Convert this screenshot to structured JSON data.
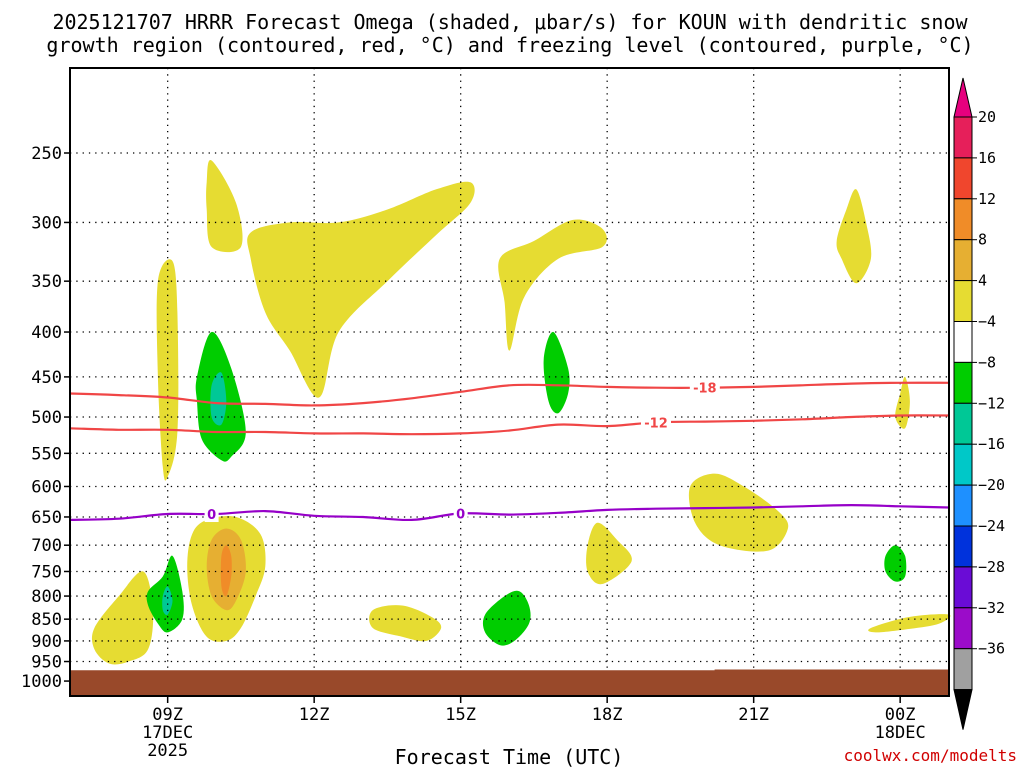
{
  "chart_data": {
    "type": "contour",
    "title_line1": "2025121707 HRRR Forecast Omega (shaded, μbar/s) for KOUN with dendritic snow",
    "title_line2": "growth region (contoured, red, °C) and freezing level (contoured, purple, °C)",
    "xlabel": "Forecast Time (UTC)",
    "credit": "coolwx.com/modelts",
    "x_range_hours": [
      7,
      25
    ],
    "x_ticks": [
      {
        "hour": 9,
        "label": "09Z",
        "sub1": "17DEC",
        "sub2": "2025"
      },
      {
        "hour": 12,
        "label": "12Z",
        "sub1": "",
        "sub2": ""
      },
      {
        "hour": 15,
        "label": "15Z",
        "sub1": "",
        "sub2": ""
      },
      {
        "hour": 18,
        "label": "18Z",
        "sub1": "",
        "sub2": ""
      },
      {
        "hour": 21,
        "label": "21Z",
        "sub1": "",
        "sub2": ""
      },
      {
        "hour": 24,
        "label": "00Z",
        "sub1": "18DEC",
        "sub2": ""
      }
    ],
    "y_ticks": [
      250,
      300,
      350,
      400,
      450,
      500,
      550,
      600,
      650,
      700,
      750,
      800,
      850,
      900,
      950,
      1000
    ],
    "y_range_hpa": [
      200,
      1040
    ],
    "surface_pressure_hpa": [
      [
        7,
        972
      ],
      [
        20.2,
        972
      ],
      [
        20.2,
        970
      ],
      [
        25,
        970
      ]
    ],
    "colorbar": {
      "labels": [
        "20",
        "16",
        "12",
        "8",
        "4",
        "−4",
        "−8",
        "−12",
        "−16",
        "−20",
        "−24",
        "−28",
        "−32",
        "−36"
      ],
      "colors": [
        "#e61f5a",
        "#f0462d",
        "#f08c28",
        "#e6af32",
        "#e6dc32",
        "#ffffff",
        "#00cd00",
        "#00c896",
        "#00c8c8",
        "#1e90ff",
        "#0032dc",
        "#6a0cd6",
        "#9b0cc9",
        "#a0a0a0",
        "#000000"
      ],
      "top_arrow_color": "#e6007e",
      "bottom_arrow_color": "#000000"
    },
    "contours": [
      {
        "name": "-18",
        "color": "#f04646",
        "points": [
          [
            7,
            470
          ],
          [
            8,
            472
          ],
          [
            9,
            475
          ],
          [
            10,
            482
          ],
          [
            11,
            483
          ],
          [
            12,
            485
          ],
          [
            13,
            482
          ],
          [
            14,
            476
          ],
          [
            15,
            468
          ],
          [
            16,
            460
          ],
          [
            17,
            460
          ],
          [
            18,
            462
          ],
          [
            19,
            463
          ],
          [
            20,
            463
          ],
          [
            21,
            462
          ],
          [
            22,
            460
          ],
          [
            23,
            458
          ],
          [
            24,
            457
          ],
          [
            25,
            457
          ]
        ],
        "label": "-18",
        "label_hour": 20.0
      },
      {
        "name": "-12",
        "color": "#f04646",
        "points": [
          [
            7,
            515
          ],
          [
            8,
            517
          ],
          [
            9,
            517
          ],
          [
            10,
            520
          ],
          [
            11,
            520
          ],
          [
            12,
            522
          ],
          [
            13,
            522
          ],
          [
            14,
            523
          ],
          [
            15,
            522
          ],
          [
            16,
            518
          ],
          [
            17,
            510
          ],
          [
            18,
            512
          ],
          [
            19,
            507
          ],
          [
            20,
            506
          ],
          [
            21,
            505
          ],
          [
            22,
            503
          ],
          [
            23,
            500
          ],
          [
            24,
            498
          ],
          [
            25,
            498
          ]
        ],
        "label": "-12",
        "label_hour": 19.0
      },
      {
        "name": "0",
        "color": "#9600c8",
        "points": [
          [
            7,
            655
          ],
          [
            8,
            653
          ],
          [
            9,
            645
          ],
          [
            10,
            645
          ],
          [
            11,
            640
          ],
          [
            12,
            648
          ],
          [
            13,
            650
          ],
          [
            14,
            655
          ],
          [
            15,
            644
          ],
          [
            16,
            646
          ],
          [
            17,
            643
          ],
          [
            18,
            638
          ],
          [
            19,
            636
          ],
          [
            20,
            635
          ],
          [
            21,
            634
          ],
          [
            22,
            632
          ],
          [
            23,
            630
          ],
          [
            24,
            632
          ],
          [
            25,
            634
          ]
        ],
        "label": "0",
        "label_hour": 9.9,
        "label2_hour": 15.0
      }
    ],
    "omega_regions": [
      {
        "color": "#e6dc32",
        "points": [
          [
            8.9,
            570
          ],
          [
            8.8,
            450
          ],
          [
            8.8,
            350
          ],
          [
            9.1,
            332
          ],
          [
            9.2,
            380
          ],
          [
            9.2,
            520
          ],
          [
            9.0,
            585
          ]
        ]
      },
      {
        "color": "#e6dc32",
        "points": [
          [
            9.8,
            270
          ],
          [
            9.9,
            255
          ],
          [
            10.4,
            285
          ],
          [
            10.5,
            320
          ],
          [
            9.9,
            320
          ],
          [
            9.8,
            290
          ]
        ]
      },
      {
        "color": "#e6dc32",
        "points": [
          [
            10.7,
            308
          ],
          [
            11.5,
            300
          ],
          [
            12.5,
            300
          ],
          [
            13.5,
            290
          ],
          [
            14.5,
            275
          ],
          [
            15.2,
            270
          ],
          [
            15.2,
            285
          ],
          [
            14.5,
            310
          ],
          [
            13.5,
            350
          ],
          [
            12.5,
            400
          ],
          [
            12.1,
            475
          ],
          [
            11.5,
            420
          ],
          [
            11.0,
            380
          ],
          [
            10.7,
            330
          ]
        ]
      },
      {
        "color": "#e6dc32",
        "points": [
          [
            15.8,
            330
          ],
          [
            16.5,
            315
          ],
          [
            17.3,
            298
          ],
          [
            17.9,
            305
          ],
          [
            17.9,
            320
          ],
          [
            17.0,
            330
          ],
          [
            16.3,
            365
          ],
          [
            16.0,
            420
          ],
          [
            15.9,
            370
          ]
        ]
      },
      {
        "color": "#e6dc32",
        "points": [
          [
            22.7,
            315
          ],
          [
            22.9,
            290
          ],
          [
            23.1,
            275
          ],
          [
            23.3,
            300
          ],
          [
            23.4,
            330
          ],
          [
            23.1,
            352
          ],
          [
            22.8,
            330
          ]
        ]
      },
      {
        "color": "#e6dc32",
        "points": [
          [
            24.0,
            470
          ],
          [
            24.1,
            450
          ],
          [
            24.2,
            480
          ],
          [
            24.1,
            515
          ],
          [
            23.9,
            500
          ]
        ]
      },
      {
        "color": "#e6dc32",
        "points": [
          [
            7.5,
            870
          ],
          [
            8.0,
            800
          ],
          [
            8.5,
            750
          ],
          [
            8.7,
            830
          ],
          [
            8.6,
            920
          ],
          [
            8.2,
            950
          ],
          [
            7.8,
            955
          ],
          [
            7.5,
            920
          ]
        ]
      },
      {
        "color": "#e6dc32",
        "points": [
          [
            9.5,
            680
          ],
          [
            9.8,
            655
          ],
          [
            10.4,
            650
          ],
          [
            10.9,
            680
          ],
          [
            11.0,
            740
          ],
          [
            10.8,
            800
          ],
          [
            10.5,
            870
          ],
          [
            10.2,
            900
          ],
          [
            9.8,
            890
          ],
          [
            9.5,
            820
          ],
          [
            9.4,
            740
          ]
        ]
      },
      {
        "color": "#e6dc32",
        "points": [
          [
            13.2,
            830
          ],
          [
            13.8,
            820
          ],
          [
            14.4,
            845
          ],
          [
            14.6,
            870
          ],
          [
            14.3,
            900
          ],
          [
            13.8,
            890
          ],
          [
            13.2,
            870
          ]
        ]
      },
      {
        "color": "#e6dc32",
        "points": [
          [
            17.6,
            700
          ],
          [
            17.8,
            660
          ],
          [
            18.2,
            690
          ],
          [
            18.5,
            730
          ],
          [
            17.9,
            775
          ],
          [
            17.6,
            750
          ]
        ]
      },
      {
        "color": "#e6dc32",
        "points": [
          [
            19.7,
            600
          ],
          [
            20.2,
            580
          ],
          [
            20.8,
            600
          ],
          [
            21.5,
            640
          ],
          [
            21.7,
            670
          ],
          [
            21.3,
            710
          ],
          [
            20.3,
            700
          ],
          [
            19.8,
            660
          ]
        ]
      },
      {
        "color": "#e6dc32",
        "points": [
          [
            23.4,
            870
          ],
          [
            24.2,
            845
          ],
          [
            25.0,
            840
          ],
          [
            24.8,
            860
          ],
          [
            24.2,
            872
          ],
          [
            23.5,
            880
          ]
        ]
      },
      {
        "color": "#e6af32",
        "points": [
          [
            9.9,
            690
          ],
          [
            10.2,
            670
          ],
          [
            10.5,
            690
          ],
          [
            10.6,
            750
          ],
          [
            10.4,
            810
          ],
          [
            10.2,
            830
          ],
          [
            9.9,
            800
          ],
          [
            9.8,
            740
          ]
        ]
      },
      {
        "color": "#f08c28",
        "points": [
          [
            10.1,
            720
          ],
          [
            10.2,
            700
          ],
          [
            10.3,
            720
          ],
          [
            10.3,
            760
          ],
          [
            10.2,
            800
          ],
          [
            10.1,
            780
          ]
        ]
      },
      {
        "color": "#00cd00",
        "points": [
          [
            9.6,
            450
          ],
          [
            9.9,
            400
          ],
          [
            10.3,
            440
          ],
          [
            10.6,
            520
          ],
          [
            10.3,
            555
          ],
          [
            10.1,
            560
          ],
          [
            9.7,
            530
          ],
          [
            9.6,
            480
          ]
        ]
      },
      {
        "color": "#00c896",
        "points": [
          [
            9.9,
            460
          ],
          [
            10.1,
            445
          ],
          [
            10.2,
            480
          ],
          [
            10.1,
            510
          ],
          [
            9.9,
            500
          ]
        ]
      },
      {
        "color": "#00cd00",
        "points": [
          [
            8.6,
            790
          ],
          [
            8.9,
            760
          ],
          [
            9.1,
            720
          ],
          [
            9.3,
            790
          ],
          [
            9.3,
            850
          ],
          [
            9.0,
            880
          ],
          [
            8.8,
            860
          ],
          [
            8.6,
            820
          ]
        ]
      },
      {
        "color": "#00c896",
        "points": [
          [
            8.9,
            800
          ],
          [
            9.0,
            780
          ],
          [
            9.1,
            810
          ],
          [
            9.0,
            840
          ],
          [
            8.9,
            830
          ]
        ]
      },
      {
        "color": "#00cd00",
        "points": [
          [
            16.7,
            430
          ],
          [
            16.9,
            400
          ],
          [
            17.2,
            440
          ],
          [
            17.2,
            470
          ],
          [
            17.0,
            495
          ],
          [
            16.8,
            480
          ]
        ]
      },
      {
        "color": "#00cd00",
        "points": [
          [
            15.5,
            840
          ],
          [
            15.9,
            800
          ],
          [
            16.2,
            790
          ],
          [
            16.4,
            820
          ],
          [
            16.4,
            860
          ],
          [
            16.1,
            900
          ],
          [
            15.8,
            910
          ],
          [
            15.5,
            880
          ]
        ]
      },
      {
        "color": "#00cd00",
        "points": [
          [
            23.7,
            720
          ],
          [
            23.9,
            700
          ],
          [
            24.1,
            720
          ],
          [
            24.1,
            760
          ],
          [
            23.9,
            770
          ],
          [
            23.7,
            750
          ]
        ]
      }
    ]
  }
}
